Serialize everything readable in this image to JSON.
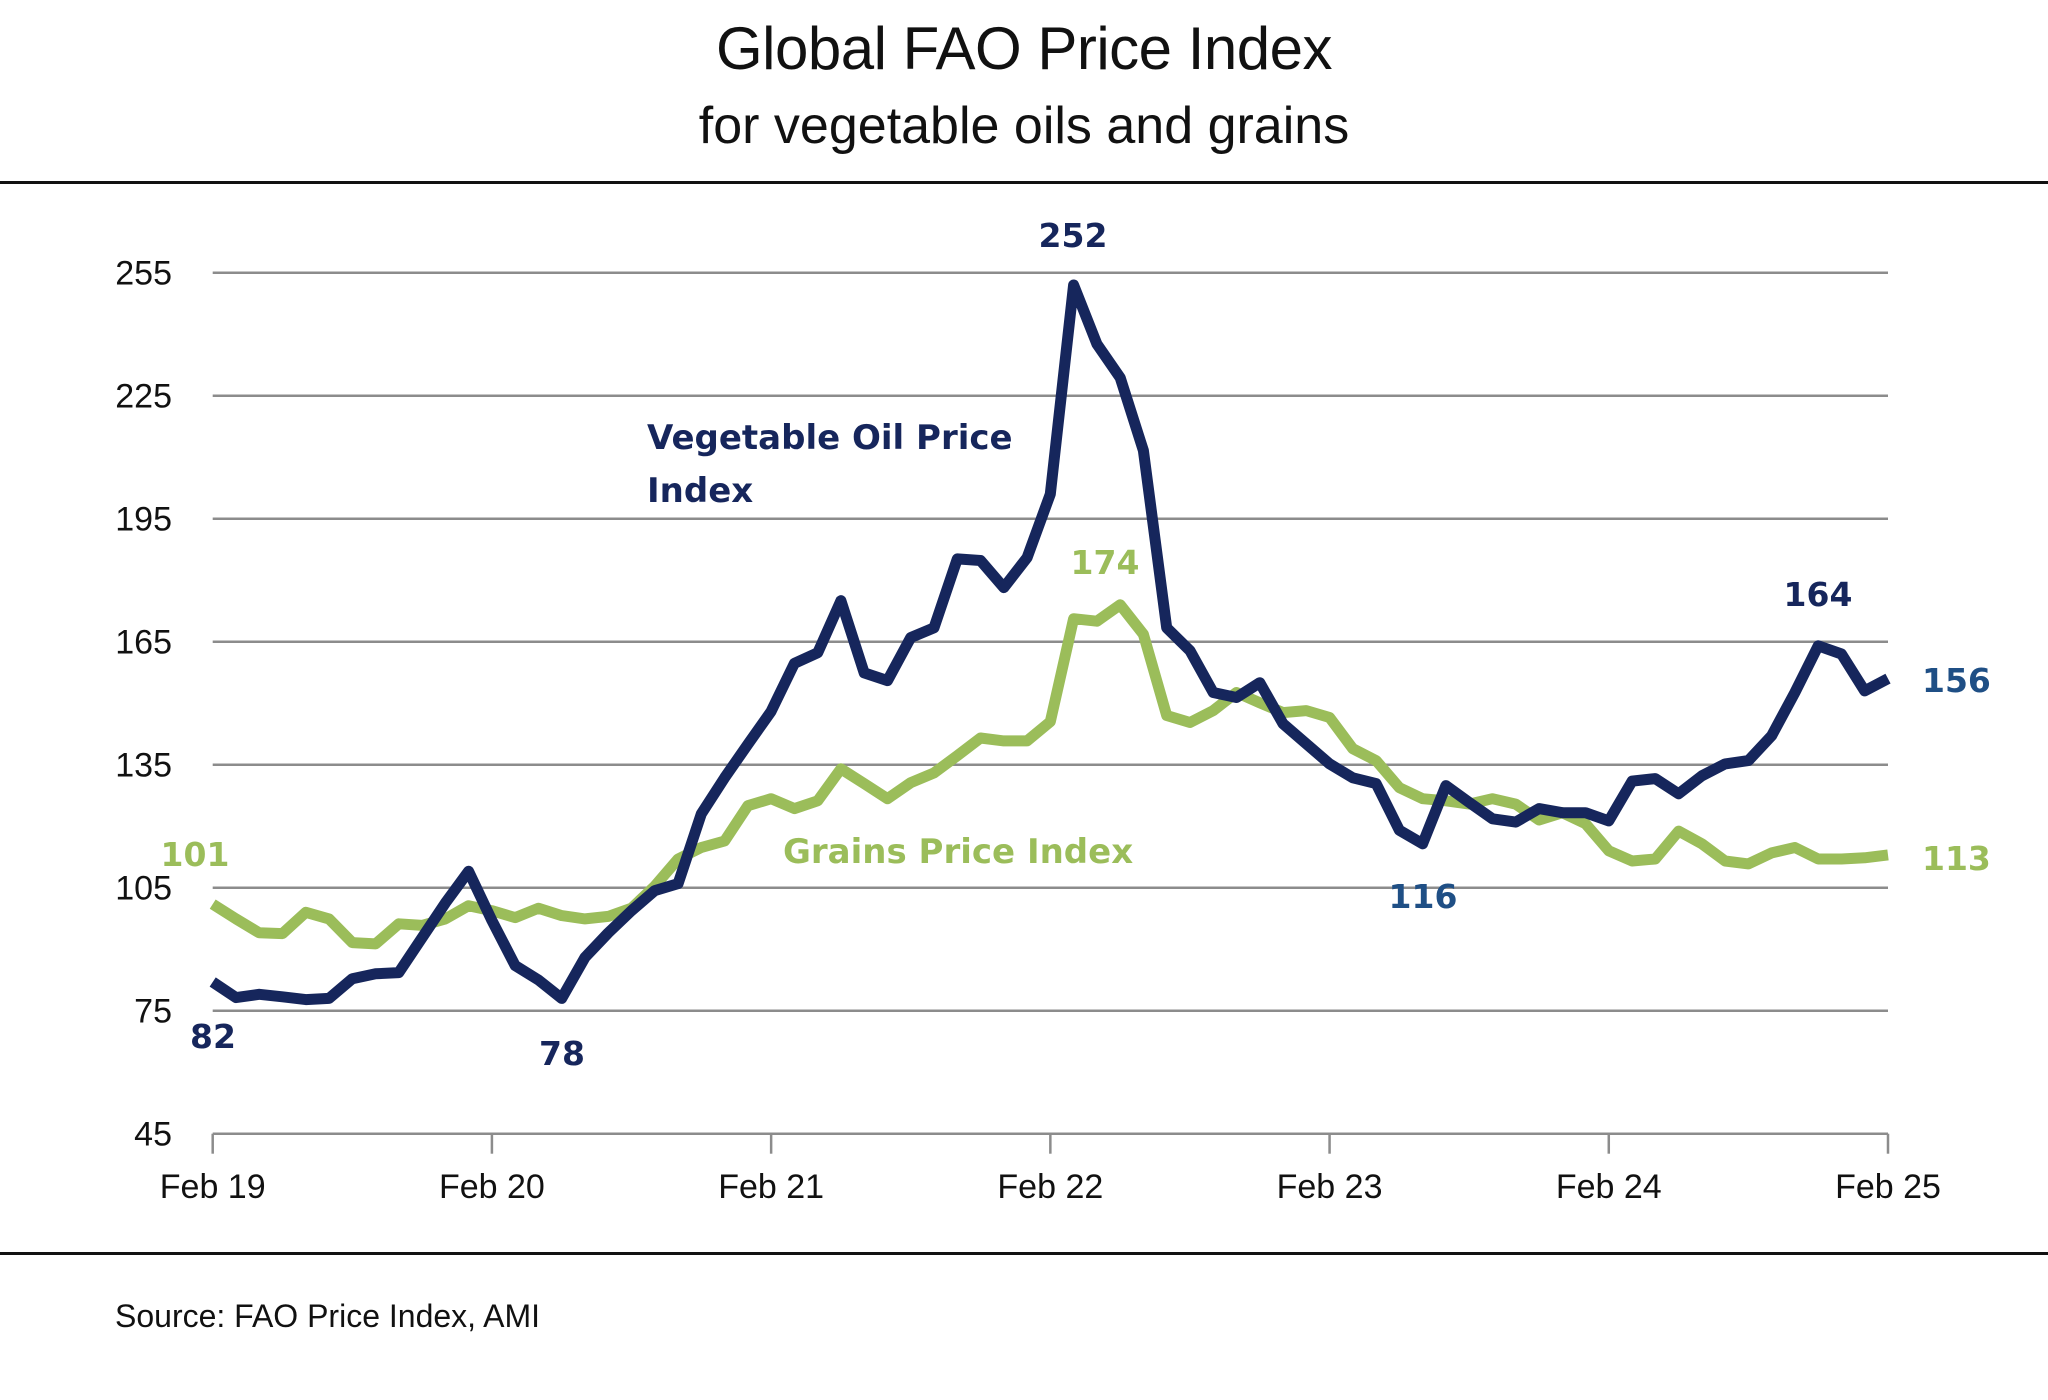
{
  "header": {
    "title": "Global FAO Price Index",
    "subtitle": "for vegetable oils and grains"
  },
  "footer": {
    "source": "Source: FAO Price Index, AMI"
  },
  "colors": {
    "veg_oil": "#16265c",
    "veg_oil_label_end": "#1f4f85",
    "grains": "#9bbd5a",
    "grid": "#8c8c8c",
    "text": "#111111"
  },
  "chart_data": {
    "type": "line",
    "title": "Global FAO Price Index",
    "subtitle": "for vegetable oils and grains",
    "xlabel": "",
    "ylabel": "",
    "ylim": [
      45,
      255
    ],
    "yticks": [
      45,
      75,
      105,
      135,
      165,
      195,
      225,
      255
    ],
    "ytick_labels": [
      "45",
      "75",
      "105",
      "135",
      "165",
      "195",
      "225",
      "255"
    ],
    "x_frequency": "monthly",
    "x_start": "Feb 19",
    "x_end": "Feb 25",
    "xtick_labels": [
      "Feb 19",
      "Feb 20",
      "Feb 21",
      "Feb 22",
      "Feb 23",
      "Feb 24",
      "Feb 25"
    ],
    "grid": true,
    "legend": "none (inline series labels)",
    "series": [
      {
        "name": "Vegetable Oil Price Index",
        "label_lines": [
          "Vegetable Oil Price",
          "Index"
        ],
        "color": "#16265c",
        "values": [
          82,
          78.2,
          79,
          78.4,
          77.7,
          78,
          82.8,
          84,
          84.3,
          92.8,
          101.3,
          109,
          97,
          86,
          82.5,
          78,
          88,
          94,
          99.4,
          104.3,
          106,
          123,
          131.8,
          140,
          148,
          159.7,
          162.3,
          175,
          157.4,
          155.5,
          166,
          168.4,
          185.2,
          184.8,
          178.2,
          185.5,
          201,
          252,
          237.6,
          229.4,
          211.6,
          168.4,
          162.8,
          152.6,
          151.4,
          155,
          145,
          140.1,
          135.2,
          131.8,
          130.4,
          119,
          115.7,
          129.9,
          125.8,
          121.8,
          121,
          124.3,
          123.3,
          123.3,
          121.3,
          131,
          131.6,
          127.9,
          132.3,
          135.2,
          136,
          142.1,
          152.6,
          164,
          162,
          153,
          156
        ]
      },
      {
        "name": "Grains Price Index",
        "label_lines": [
          "Grains Price Index"
        ],
        "color": "#9bbd5a",
        "values": [
          101,
          97.4,
          94,
          93.8,
          99,
          97.4,
          91.6,
          91.3,
          96.2,
          95.8,
          97.4,
          100.6,
          99.4,
          97.7,
          100,
          98.2,
          97.4,
          98,
          100,
          105.4,
          112,
          114.8,
          116.4,
          125,
          126.7,
          124.3,
          126.2,
          134,
          130.4,
          126.7,
          130.6,
          133,
          137.2,
          141.5,
          140.8,
          140.8,
          145.5,
          170.6,
          170,
          174,
          166.8,
          147,
          145.3,
          148.2,
          152.6,
          150.1,
          147.7,
          148.2,
          146.5,
          138.9,
          136,
          129.4,
          126.7,
          126.2,
          125.4,
          126.7,
          125.4,
          121.5,
          123.3,
          120.6,
          114,
          111.5,
          112,
          118.8,
          115.7,
          111.5,
          110.8,
          113.5,
          114.8,
          112,
          112,
          112.3,
          113
        ]
      }
    ],
    "annotations": [
      {
        "series": "Vegetable Oil Price Index",
        "index": 0,
        "text": "82"
      },
      {
        "series": "Vegetable Oil Price Index",
        "index": 15,
        "text": "78"
      },
      {
        "series": "Vegetable Oil Price Index",
        "index": 37,
        "text": "252"
      },
      {
        "series": "Vegetable Oil Price Index",
        "index": 52,
        "text": "116"
      },
      {
        "series": "Vegetable Oil Price Index",
        "index": 69,
        "text": "164"
      },
      {
        "series": "Vegetable Oil Price Index",
        "index": 72,
        "text": "156"
      },
      {
        "series": "Grains Price Index",
        "index": 0,
        "text": "101"
      },
      {
        "series": "Grains Price Index",
        "index": 39,
        "text": "174"
      },
      {
        "series": "Grains Price Index",
        "index": 72,
        "text": "113"
      }
    ]
  }
}
